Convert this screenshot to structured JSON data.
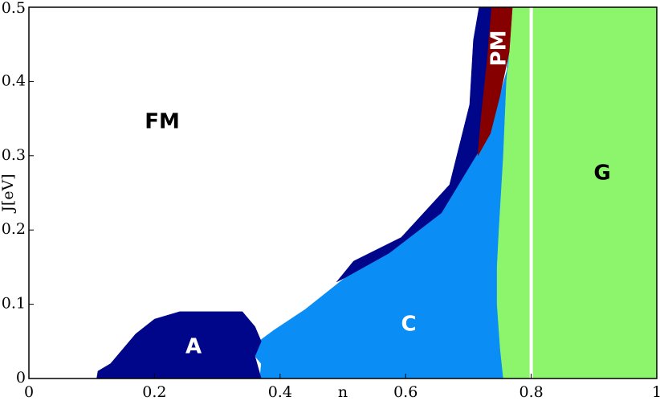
{
  "chart_data": {
    "type": "phase-diagram",
    "xlabel": "n",
    "ylabel": "J[eV]",
    "xlim": [
      0,
      1
    ],
    "ylim": [
      0,
      0.5
    ],
    "xticks": [
      0,
      0.2,
      0.4,
      0.6,
      0.8,
      1
    ],
    "yticks": [
      0,
      0.1,
      0.2,
      0.3,
      0.4,
      0.5
    ],
    "regions": [
      {
        "name": "FM",
        "color": "#ffffff",
        "label_color": "#000000",
        "x": [
          0,
          1,
          1,
          0
        ],
        "y": [
          0,
          0,
          0.5,
          0.5
        ]
      },
      {
        "name": "G",
        "color": "#8cf56c",
        "label_color": "#000000",
        "x": [
          0.755,
          1,
          1,
          0.77,
          0.765,
          0.76,
          0.755,
          0.748,
          0.745,
          0.745,
          0.75
        ],
        "y": [
          0,
          0,
          0.5,
          0.5,
          0.45,
          0.4,
          0.3,
          0.2,
          0.15,
          0.1,
          0.04
        ]
      },
      {
        "name": "C",
        "color": "#0a8ef5",
        "label_color": "#ffffff",
        "x": [
          0.368,
          0.755,
          0.75,
          0.745,
          0.745,
          0.748,
          0.755,
          0.76,
          0.765,
          0.763,
          0.75,
          0.735,
          0.715,
          0.657,
          0.574,
          0.504,
          0.44,
          0.39,
          0.35,
          0.37
        ],
        "y": [
          0,
          0,
          0.04,
          0.1,
          0.15,
          0.2,
          0.3,
          0.4,
          0.45,
          0.42,
          0.38,
          0.33,
          0.304,
          0.223,
          0.169,
          0.136,
          0.093,
          0.065,
          0.04,
          0.02
        ]
      },
      {
        "name": "A",
        "color": "#00068a",
        "label_color": "#ffffff",
        "x": [
          0.504,
          0.574,
          0.657,
          0.715,
          0.735,
          0.737,
          0.717,
          0.708,
          0.702,
          0.67,
          0.593,
          0.517,
          0.49
        ],
        "y": [
          0.136,
          0.169,
          0.223,
          0.304,
          0.33,
          0.5,
          0.5,
          0.456,
          0.369,
          0.261,
          0.19,
          0.158,
          0.13
        ]
      },
      {
        "name": "A",
        "color": "#00068a",
        "label_color": "#ffffff",
        "x": [
          0.108,
          0.37,
          0.36,
          0.37,
          0.36,
          0.34,
          0.24,
          0.2,
          0.17,
          0.15,
          0.13,
          0.11
        ],
        "y": [
          0,
          0,
          0.03,
          0.05,
          0.07,
          0.09,
          0.09,
          0.08,
          0.06,
          0.04,
          0.02,
          0.01
        ]
      },
      {
        "name": "PM",
        "color": "#860000",
        "label_color": "#ffffff",
        "x": [
          0.715,
          0.735,
          0.75,
          0.765,
          0.77,
          0.737,
          0.73,
          0.72
        ],
        "y": [
          0.3,
          0.33,
          0.38,
          0.44,
          0.5,
          0.5,
          0.43,
          0.35
        ]
      }
    ],
    "vline": {
      "x": 0.8,
      "color": "#ffffff"
    }
  }
}
